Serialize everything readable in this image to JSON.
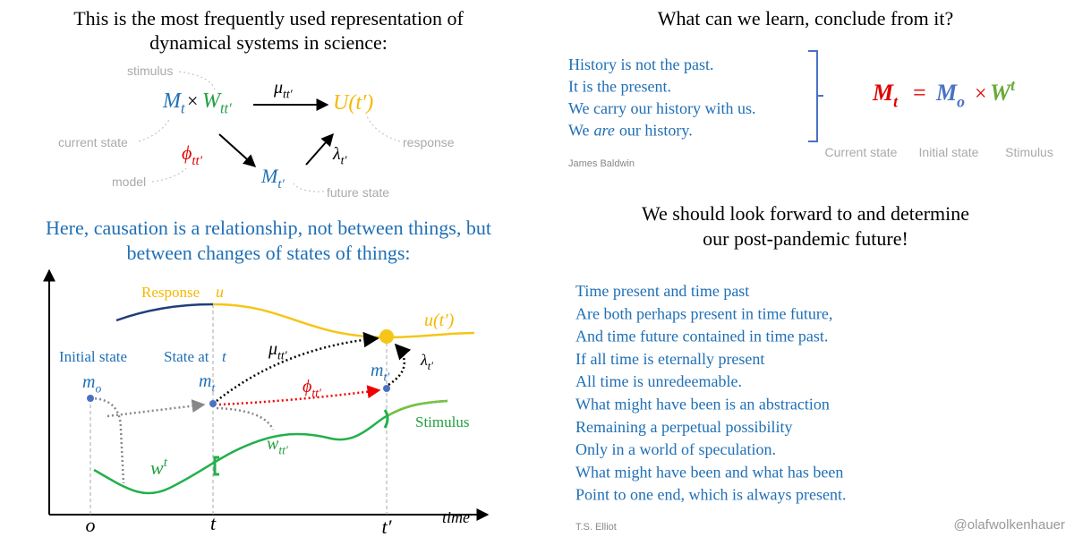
{
  "left_panel": {
    "title": [
      "This is the most frequently used representation of",
      "dynamical systems in science:"
    ],
    "scheme": {
      "state": {
        "base": "M",
        "sub": "t"
      },
      "times": "×",
      "stimulus": {
        "base": "W",
        "sub": "tt′"
      },
      "mu": {
        "base": "μ",
        "sub": "tt′"
      },
      "response": "U(t′)",
      "phi": {
        "base": "ϕ",
        "sub": "tt′"
      },
      "future": {
        "base": "M",
        "sub": "t′"
      },
      "lambda": {
        "base": "λ",
        "sub": "t′"
      },
      "notes": {
        "stimulus": "stimulus",
        "current_state": "current state",
        "model": "model",
        "response": "response",
        "future_state": "future state"
      }
    },
    "causation": [
      "Here, causation is a relationship, not between things, but",
      "between changes of states of things:"
    ],
    "plot": {
      "response": "Response",
      "response_var": "u",
      "u_future": "u(t′)",
      "initial_state": "Initial state",
      "state_at": "State at",
      "state_at_var": "t",
      "m_o": {
        "base": "m",
        "sub": "o"
      },
      "m_t": {
        "base": "m",
        "sub": "t"
      },
      "m_tp": {
        "base": "m",
        "sub": "t′"
      },
      "mu": {
        "base": "μ",
        "sub": "tt′"
      },
      "phi": {
        "base": "ϕ",
        "sub": "tt′"
      },
      "lambda": {
        "base": "λ",
        "sub": "t′"
      },
      "stimulus": "Stimulus",
      "w_t": {
        "base": "w",
        "sup": "t"
      },
      "w_tt": {
        "base": "w",
        "sub": "tt′"
      },
      "axis_o": "o",
      "axis_t": "t",
      "axis_tp": "t′",
      "axis_time": "time"
    }
  },
  "right_panel": {
    "question": "What can we learn, conclude from it?",
    "quote": [
      "History is not the past.",
      "It is the present.",
      "We carry our history with us.",
      [
        "We",
        "are",
        "our history."
      ]
    ],
    "quote_author": "James Baldwin",
    "equation": {
      "lhs": {
        "base": "M",
        "sub": "t"
      },
      "eq": "=",
      "initial": {
        "base": "M",
        "sub": "o"
      },
      "times": "×",
      "stimulus": {
        "base": "W",
        "sup": "t"
      }
    },
    "equation_labels": [
      "Current state",
      "Initial state",
      "Stimulus"
    ],
    "heading": [
      "We should look forward to and determine",
      "our post-pandemic future!"
    ],
    "poem": [
      "Time present and time past",
      "Are both perhaps present in time future,",
      "And time future contained in time past.",
      "If all time is eternally present",
      "All time is unredeemable.",
      "What might have been is an abstraction",
      "Remaining a perpetual possibility",
      "Only in a world of speculation.",
      "What might have been and what has been",
      "Point to one end, which is always present."
    ],
    "poem_author": "T.S. Elliot",
    "handle": "@olafwolkenhauer"
  }
}
